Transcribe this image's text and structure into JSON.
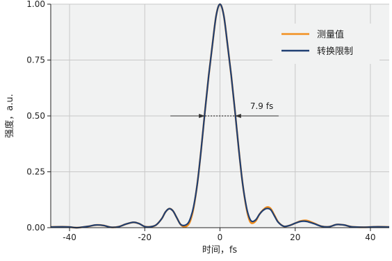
{
  "chart_data": {
    "type": "line",
    "xlabel": "时间，fs",
    "ylabel": "强度，a.u.",
    "xlim": [
      -45,
      45
    ],
    "ylim": [
      0,
      1.0
    ],
    "xticks": [
      -40,
      -20,
      0,
      20,
      40
    ],
    "xtick_labels": [
      "-40",
      "-20",
      "0",
      "20",
      "40"
    ],
    "yticks": [
      0.0,
      0.25,
      0.5,
      0.75,
      1.0
    ],
    "ytick_labels": [
      "0.00",
      "0.25",
      "0.50",
      "0.75",
      "1.00"
    ],
    "grid": true,
    "legend_position": "top-right",
    "series": [
      {
        "name": "测量值",
        "color": "#f28e1c",
        "x": [
          -45,
          -42,
          -40,
          -38,
          -35,
          -33,
          -31,
          -29,
          -27,
          -25,
          -23,
          -21.5,
          -20,
          -18.5,
          -17,
          -15.5,
          -14.5,
          -13.5,
          -12.5,
          -11.5,
          -10.5,
          -9.5,
          -8.5,
          -7.8,
          -7,
          -6,
          -5,
          -4,
          -3,
          -2,
          -1,
          0,
          1,
          2,
          3,
          4,
          5,
          6,
          7,
          7.8,
          8.5,
          9.5,
          10.5,
          11.5,
          12.5,
          13.5,
          14.5,
          15.5,
          17,
          18.5,
          20,
          21.5,
          23,
          25,
          27,
          29,
          31,
          33,
          35,
          38,
          40,
          42,
          45
        ],
        "y": [
          0.003,
          0.004,
          0.003,
          0.0,
          0.006,
          0.012,
          0.01,
          0.002,
          0.004,
          0.016,
          0.024,
          0.018,
          0.005,
          0.004,
          0.012,
          0.04,
          0.07,
          0.085,
          0.075,
          0.045,
          0.015,
          0.004,
          0.012,
          0.035,
          0.09,
          0.2,
          0.35,
          0.52,
          0.68,
          0.82,
          0.95,
          1.0,
          0.95,
          0.82,
          0.68,
          0.52,
          0.35,
          0.2,
          0.09,
          0.035,
          0.02,
          0.03,
          0.06,
          0.08,
          0.092,
          0.085,
          0.055,
          0.025,
          0.006,
          0.01,
          0.02,
          0.03,
          0.032,
          0.02,
          0.006,
          0.004,
          0.014,
          0.012,
          0.004,
          0.002,
          0.003,
          0.004,
          0.003
        ]
      },
      {
        "name": "转换限制",
        "color": "#1f3f73",
        "x": [
          -45,
          -42,
          -40,
          -38,
          -35,
          -33,
          -31,
          -29,
          -27,
          -25,
          -23,
          -21.5,
          -20,
          -18.5,
          -17,
          -15.5,
          -14.5,
          -13.5,
          -12.5,
          -11.5,
          -10.5,
          -9.5,
          -8.5,
          -7.8,
          -7,
          -6,
          -5,
          -4,
          -3,
          -2,
          -1,
          0,
          1,
          2,
          3,
          4,
          5,
          6,
          7,
          7.8,
          8.5,
          9.5,
          10.5,
          11.5,
          12.5,
          13.5,
          14.5,
          15.5,
          17,
          18.5,
          20,
          21.5,
          23,
          25,
          27,
          29,
          31,
          33,
          35,
          38,
          40,
          42,
          45
        ],
        "y": [
          0.003,
          0.004,
          0.003,
          0.0,
          0.006,
          0.012,
          0.01,
          0.002,
          0.004,
          0.016,
          0.024,
          0.018,
          0.005,
          0.004,
          0.012,
          0.04,
          0.07,
          0.085,
          0.075,
          0.045,
          0.015,
          0.01,
          0.02,
          0.045,
          0.095,
          0.2,
          0.35,
          0.52,
          0.68,
          0.82,
          0.95,
          1.0,
          0.95,
          0.82,
          0.68,
          0.52,
          0.35,
          0.2,
          0.095,
          0.045,
          0.028,
          0.035,
          0.06,
          0.078,
          0.086,
          0.08,
          0.052,
          0.024,
          0.006,
          0.01,
          0.02,
          0.028,
          0.028,
          0.018,
          0.006,
          0.004,
          0.014,
          0.012,
          0.004,
          0.002,
          0.003,
          0.004,
          0.003
        ]
      }
    ],
    "annotations": [
      {
        "text": "7.9 fs",
        "y": 0.5,
        "x_start": -3.95,
        "x_end": 3.95
      }
    ]
  }
}
